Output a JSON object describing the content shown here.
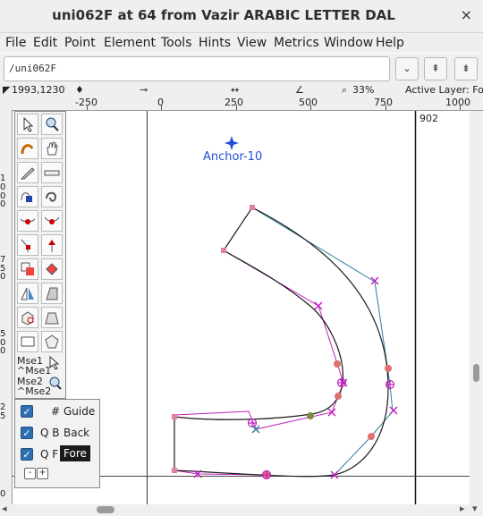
{
  "window": {
    "title": "uni062F at 64 from Vazir ARABIC LETTER DAL",
    "close_glyph": "×"
  },
  "menu": [
    "File",
    "Edit",
    "Point",
    "Element",
    "Tools",
    "Hints",
    "View",
    "Metrics",
    "Window",
    "Help"
  ],
  "path": {
    "value": "/uni062F",
    "dropdown_glyph": "⌄",
    "prev_glyph": "⇞",
    "next_glyph": "⇟"
  },
  "infobar": {
    "coords": "1993,1230",
    "zoom": "33%",
    "active_layer": "Active Layer: Fo"
  },
  "hruler": {
    "labels": [
      "-250",
      "0",
      "250",
      "500",
      "750",
      "1000"
    ]
  },
  "vruler": {
    "labels": [
      "1",
      "0",
      "0",
      "0",
      "7",
      "5",
      "0",
      "5",
      "0",
      "0",
      "2",
      "5",
      "0"
    ]
  },
  "canvas": {
    "width_label": "902",
    "anchor_label": "Anchor-10",
    "anchor_color": "#1e50d8",
    "outline_color": "#1a1a1a",
    "handle_color_primary": "#c020c0",
    "handle_color_secondary": "#2a7f9a",
    "point_color": "#e07070"
  },
  "mouse": {
    "mse1": "Mse1",
    "mse1_ctrl": "^Mse1",
    "mse2": "Mse2",
    "mse2_ctrl": "^Mse2"
  },
  "layers": {
    "rows": [
      {
        "prefix": "#",
        "name": "Guide",
        "checked": true
      },
      {
        "prefix": "Q B",
        "name": "Back",
        "checked": true
      },
      {
        "prefix": "Q F",
        "name": "Fore",
        "checked": true
      }
    ],
    "minus": "-",
    "plus": "+"
  }
}
